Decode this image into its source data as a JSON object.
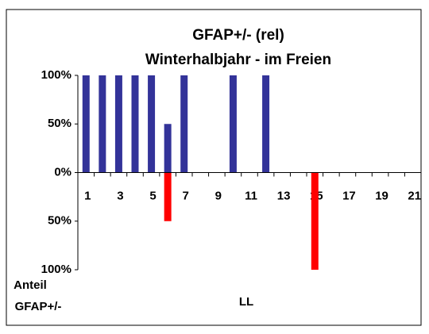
{
  "chart_data": {
    "type": "bar",
    "title": [
      "GFAP+/-  (rel)",
      "Winterhalbjahr - im Freien"
    ],
    "x_label": "LL",
    "y_label": [
      "Anteil",
      "GFAP+/-"
    ],
    "categories": [
      "1",
      null,
      "3",
      null,
      "5",
      null,
      "7",
      null,
      "9",
      null,
      "11",
      null,
      "13",
      null,
      "15",
      null,
      "17",
      null,
      "19",
      null,
      "21"
    ],
    "series": [
      {
        "color": "#333399",
        "values": [
          100,
          100,
          100,
          100,
          100,
          50,
          100,
          0,
          0,
          100,
          0,
          100,
          0,
          0,
          0,
          0,
          0,
          0,
          0,
          0,
          0
        ]
      },
      {
        "color": "#ff0000",
        "values": [
          0,
          0,
          0,
          0,
          0,
          -50,
          0,
          0,
          0,
          0,
          0,
          0,
          0,
          0,
          -100,
          0,
          0,
          0,
          0,
          0,
          0
        ]
      }
    ],
    "ylim": [
      -100,
      100
    ],
    "yticks": [
      {
        "value": -100,
        "label": "100%"
      },
      {
        "value": -50,
        "label": "50%"
      },
      {
        "value": 0,
        "label": "0%"
      },
      {
        "value": 50,
        "label": "50%"
      },
      {
        "value": 100,
        "label": "100%"
      }
    ]
  }
}
